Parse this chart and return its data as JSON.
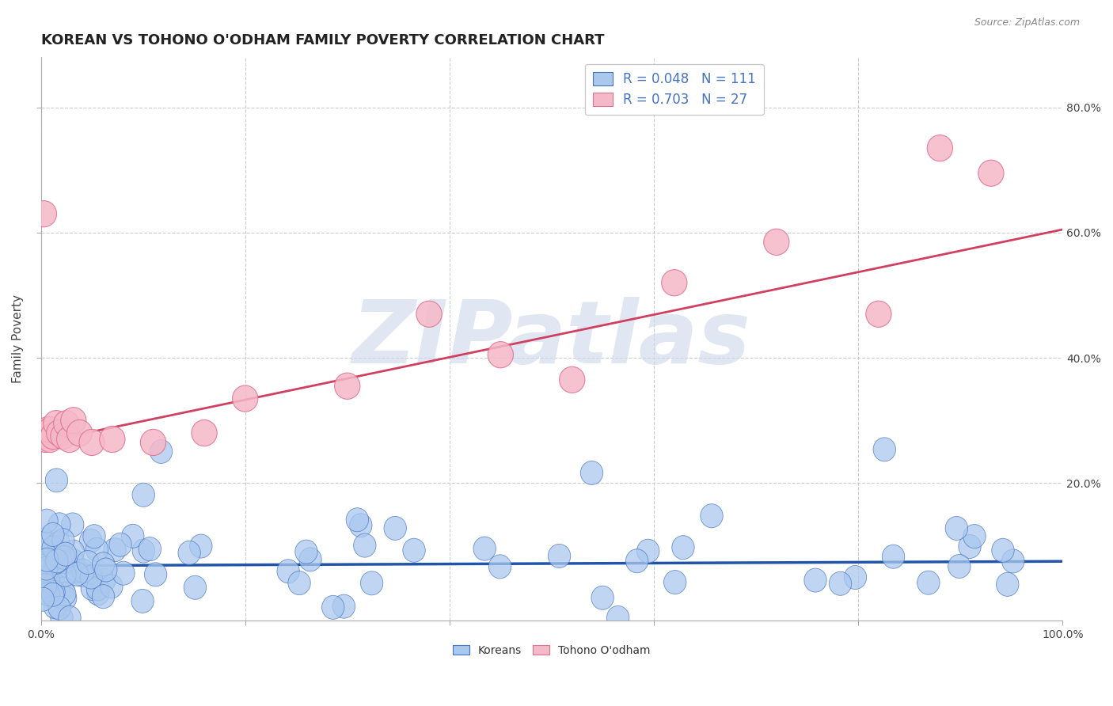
{
  "title": "KOREAN VS TOHONO O'ODHAM FAMILY POVERTY CORRELATION CHART",
  "source": "Source: ZipAtlas.com",
  "ylabel": "Family Poverty",
  "xlim": [
    0,
    1.0
  ],
  "ylim": [
    -0.02,
    0.88
  ],
  "korean_R": 0.048,
  "korean_N": 111,
  "tohono_R": 0.703,
  "tohono_N": 27,
  "korean_color": "#aac8ee",
  "tohono_color": "#f5b8c8",
  "korean_edge_color": "#4472c4",
  "tohono_edge_color": "#e07090",
  "korean_line_color": "#2255aa",
  "tohono_line_color": "#d04060",
  "background_color": "#ffffff",
  "grid_color": "#cccccc",
  "watermark": "ZIPatlas",
  "watermark_color": "#ccd8ec",
  "legend_text_color": "#4472c4",
  "title_fontsize": 13,
  "korean_line_y0": 0.068,
  "korean_line_y1": 0.075,
  "tohono_line_y0": 0.265,
  "tohono_line_y1": 0.605,
  "tohono_x": [
    0.003,
    0.005,
    0.007,
    0.009,
    0.01,
    0.012,
    0.015,
    0.018,
    0.022,
    0.025,
    0.028,
    0.032,
    0.038,
    0.05,
    0.07,
    0.11,
    0.16,
    0.2,
    0.3,
    0.38,
    0.45,
    0.52,
    0.62,
    0.72,
    0.82,
    0.88,
    0.93
  ],
  "tohono_y": [
    0.63,
    0.27,
    0.285,
    0.27,
    0.285,
    0.275,
    0.295,
    0.28,
    0.275,
    0.295,
    0.27,
    0.3,
    0.28,
    0.265,
    0.27,
    0.265,
    0.28,
    0.335,
    0.355,
    0.47,
    0.405,
    0.365,
    0.52,
    0.585,
    0.47,
    0.735,
    0.695
  ]
}
